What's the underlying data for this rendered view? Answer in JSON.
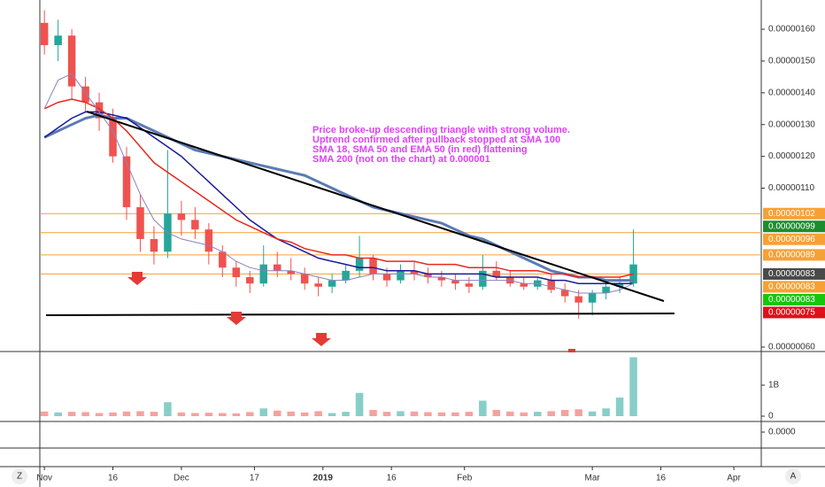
{
  "chart_data": {
    "type": "candlestick",
    "annotation": [
      "Price broke-up descending triangle with strong volume.",
      "Uptrend confirmed after pullback stopped at SMA 100",
      "SMA 18, SMA 50 and EMA 50 (in red) flattening",
      "SMA 200 (not on the chart) at 0.000001"
    ],
    "x": [
      "2018-11-01",
      "2018-11-04",
      "2018-11-07",
      "2018-11-10",
      "2018-11-13",
      "2018-11-16",
      "2018-11-19",
      "2018-11-22",
      "2018-11-25",
      "2018-11-28",
      "2018-12-01",
      "2018-12-04",
      "2018-12-07",
      "2018-12-10",
      "2018-12-13",
      "2018-12-16",
      "2018-12-19",
      "2018-12-22",
      "2018-12-25",
      "2018-12-28",
      "2018-12-31",
      "2019-01-03",
      "2019-01-06",
      "2019-01-09",
      "2019-01-12",
      "2019-01-15",
      "2019-01-18",
      "2019-01-21",
      "2019-01-24",
      "2019-01-27",
      "2019-01-30",
      "2019-02-02",
      "2019-02-05",
      "2019-02-08",
      "2019-02-11",
      "2019-02-14",
      "2019-02-17",
      "2019-02-20",
      "2019-02-23",
      "2019-02-26",
      "2019-03-01",
      "2019-03-04",
      "2019-03-07",
      "2019-03-10"
    ],
    "open": [
      1.62e-06,
      1.55e-06,
      1.58e-06,
      1.42e-06,
      1.37e-06,
      1.32e-06,
      1.2e-06,
      1.04e-06,
      9.4e-07,
      9e-07,
      1.02e-06,
      1e-06,
      9.7e-07,
      9e-07,
      8.5e-07,
      8.2e-07,
      8e-07,
      8.6e-07,
      8.4e-07,
      8.3e-07,
      8e-07,
      7.9e-07,
      8.1e-07,
      8.4e-07,
      8.8e-07,
      8.3e-07,
      8.1e-07,
      8.4e-07,
      8.3e-07,
      8.2e-07,
      8.1e-07,
      8e-07,
      7.9e-07,
      8.4e-07,
      8.2e-07,
      8e-07,
      7.9e-07,
      8.1e-07,
      7.8e-07,
      7.6e-07,
      7.4e-07,
      7.7e-07,
      7.9e-07,
      8e-07
    ],
    "high": [
      1.66e-06,
      1.63e-06,
      1.6e-06,
      1.45e-06,
      1.4e-06,
      1.35e-06,
      1.23e-06,
      1.08e-06,
      9.8e-07,
      1.22e-06,
      1.06e-06,
      1.04e-06,
      9.9e-07,
      9.2e-07,
      8.7e-07,
      8.4e-07,
      9.2e-07,
      9e-07,
      8.8e-07,
      8.5e-07,
      8.2e-07,
      8.3e-07,
      8.6e-07,
      9.5e-07,
      8.9e-07,
      8.5e-07,
      8.6e-07,
      8.7e-07,
      8.5e-07,
      8.4e-07,
      8.3e-07,
      8.2e-07,
      8.9e-07,
      8.7e-07,
      8.4e-07,
      8.2e-07,
      8.2e-07,
      8.3e-07,
      8e-07,
      7.8e-07,
      7.8e-07,
      8.1e-07,
      8.2e-07,
      9.7e-07
    ],
    "low": [
      1.52e-06,
      1.5e-06,
      1.38e-06,
      1.34e-06,
      1.28e-06,
      1.18e-06,
      1e-06,
      9e-07,
      8.6e-07,
      8.8e-07,
      9.5e-07,
      9.4e-07,
      8.6e-07,
      8.2e-07,
      7.9e-07,
      7.7e-07,
      7.9e-07,
      8.2e-07,
      8.1e-07,
      7.8e-07,
      7.6e-07,
      7.7e-07,
      8e-07,
      8.2e-07,
      8.1e-07,
      7.9e-07,
      8e-07,
      8.1e-07,
      8e-07,
      7.9e-07,
      7.8e-07,
      7.7e-07,
      7.8e-07,
      8.1e-07,
      7.9e-07,
      7.8e-07,
      7.8e-07,
      7.7e-07,
      7.4e-07,
      6.9e-07,
      7e-07,
      7.5e-07,
      7.7e-07,
      7.9e-07
    ],
    "close": [
      1.55e-06,
      1.58e-06,
      1.42e-06,
      1.37e-06,
      1.32e-06,
      1.2e-06,
      1.04e-06,
      9.4e-07,
      9e-07,
      1.02e-06,
      1e-06,
      9.7e-07,
      9e-07,
      8.5e-07,
      8.2e-07,
      8e-07,
      8.6e-07,
      8.4e-07,
      8.3e-07,
      8e-07,
      7.9e-07,
      8.1e-07,
      8.4e-07,
      8.8e-07,
      8.3e-07,
      8.1e-07,
      8.4e-07,
      8.3e-07,
      8.2e-07,
      8.1e-07,
      8e-07,
      7.9e-07,
      8.4e-07,
      8.2e-07,
      8e-07,
      7.9e-07,
      8.1e-07,
      7.8e-07,
      7.6e-07,
      7.4e-07,
      7.7e-07,
      7.9e-07,
      8e-07,
      8.6e-07
    ],
    "up_color": "#26a69a",
    "down_color": "#ef5350",
    "series": [
      {
        "color": "#5b7bb4",
        "width": 3,
        "values": [
          1.26e-06,
          1.28e-06,
          1.3e-06,
          1.32e-06,
          1.33e-06,
          1.32e-06,
          1.32e-06,
          1.3e-06,
          1.28e-06,
          1.26e-06,
          1.24e-06,
          1.22e-06,
          1.21e-06,
          1.2e-06,
          1.19e-06,
          1.18e-06,
          1.17e-06,
          1.16e-06,
          1.15e-06,
          1.14e-06,
          1.12e-06,
          1.1e-06,
          1.08e-06,
          1.06e-06,
          1.04e-06,
          1.03e-06,
          1.02e-06,
          1.01e-06,
          1e-06,
          9.9e-07,
          9.7e-07,
          9.5e-07,
          9.4e-07,
          9.2e-07,
          9e-07,
          8.8e-07,
          8.6e-07,
          8.4e-07,
          8.3e-07,
          8.2e-07,
          8.2e-07,
          8.1e-07,
          8.1e-07,
          8.1e-07
        ]
      },
      {
        "color": "#1a1a9e",
        "width": 1.5,
        "values": [
          1.26e-06,
          1.29e-06,
          1.32e-06,
          1.34e-06,
          1.34e-06,
          1.33e-06,
          1.32e-06,
          1.29e-06,
          1.26e-06,
          1.23e-06,
          1.2e-06,
          1.16e-06,
          1.12e-06,
          1.08e-06,
          1.04e-06,
          1e-06,
          9.7e-07,
          9.4e-07,
          9.2e-07,
          9e-07,
          8.8e-07,
          8.7e-07,
          8.6e-07,
          8.5e-07,
          8.5e-07,
          8.4e-07,
          8.4e-07,
          8.4e-07,
          8.3e-07,
          8.3e-07,
          8.3e-07,
          8.3e-07,
          8.3e-07,
          8.2e-07,
          8.2e-07,
          8.2e-07,
          8.2e-07,
          8.1e-07,
          8.1e-07,
          8e-07,
          8e-07,
          8e-07,
          8e-07,
          8e-07
        ]
      },
      {
        "color": "#e8281e",
        "width": 1.5,
        "values": [
          1.35e-06,
          1.37e-06,
          1.38e-06,
          1.37e-06,
          1.35e-06,
          1.32e-06,
          1.28e-06,
          1.23e-06,
          1.18e-06,
          1.15e-06,
          1.12e-06,
          1.09e-06,
          1.06e-06,
          1.03e-06,
          1e-06,
          9.8e-07,
          9.6e-07,
          9.4e-07,
          9.3e-07,
          9.1e-07,
          9e-07,
          8.9e-07,
          8.9e-07,
          8.8e-07,
          8.8e-07,
          8.7e-07,
          8.7e-07,
          8.7e-07,
          8.6e-07,
          8.6e-07,
          8.6e-07,
          8.5e-07,
          8.5e-07,
          8.5e-07,
          8.4e-07,
          8.4e-07,
          8.4e-07,
          8.3e-07,
          8.3e-07,
          8.2e-07,
          8.2e-07,
          8.2e-07,
          8.2e-07,
          8.3e-07
        ]
      },
      {
        "color": "#8c7fc0",
        "width": 1,
        "values": [
          1.35e-06,
          1.44e-06,
          1.46e-06,
          1.4e-06,
          1.34e-06,
          1.28e-06,
          1.18e-06,
          1.08e-06,
          1e-06,
          9.6e-07,
          9.4e-07,
          9.3e-07,
          9.2e-07,
          9e-07,
          8.7e-07,
          8.5e-07,
          8.4e-07,
          8.4e-07,
          8.4e-07,
          8.3e-07,
          8.2e-07,
          8.1e-07,
          8.1e-07,
          8.2e-07,
          8.3e-07,
          8.3e-07,
          8.3e-07,
          8.3e-07,
          8.2e-07,
          8.2e-07,
          8.1e-07,
          8.1e-07,
          8.1e-07,
          8.1e-07,
          8.1e-07,
          8e-07,
          8e-07,
          7.9e-07,
          7.8e-07,
          7.7e-07,
          7.7e-07,
          7.7e-07,
          7.8e-07,
          8e-07
        ]
      }
    ],
    "volume": [
      150000000.0,
      120000000.0,
      140000000.0,
      130000000.0,
      100000000.0,
      120000000.0,
      150000000.0,
      160000000.0,
      140000000.0,
      450000000.0,
      120000000.0,
      100000000.0,
      110000000.0,
      100000000.0,
      90000000.0,
      130000000.0,
      250000000.0,
      180000000.0,
      150000000.0,
      120000000.0,
      160000000.0,
      100000000.0,
      140000000.0,
      750000000.0,
      200000000.0,
      140000000.0,
      160000000.0,
      150000000.0,
      130000000.0,
      120000000.0,
      120000000.0,
      140000000.0,
      500000000.0,
      200000000.0,
      150000000.0,
      120000000.0,
      140000000.0,
      160000000.0,
      200000000.0,
      220000000.0,
      150000000.0,
      250000000.0,
      600000000.0,
      1900000000.0
    ],
    "xlim": [
      "2018-10-31",
      "2019-04-07"
    ],
    "xticks": [
      {
        "value": "2018-11-01",
        "label": "Nov"
      },
      {
        "value": "2018-11-16",
        "label": "16"
      },
      {
        "value": "2018-12-01",
        "label": "Dec"
      },
      {
        "value": "2018-12-17",
        "label": "17"
      },
      {
        "value": "2019-01-01",
        "label": "2019"
      },
      {
        "value": "2019-01-16",
        "label": "16"
      },
      {
        "value": "2019-02-01",
        "label": "Feb"
      },
      {
        "value": "2019-03-01",
        "label": "Mar"
      },
      {
        "value": "2019-03-16",
        "label": "16"
      },
      {
        "value": "2019-04-01",
        "label": "Apr"
      }
    ],
    "ylim": [
      5.86e-07,
      1.692e-06
    ],
    "yticks": [
      {
        "value": 1.6e-06,
        "label": "0.00000160"
      },
      {
        "value": 1.5e-06,
        "label": "0.00000150"
      },
      {
        "value": 1.4e-06,
        "label": "0.00000140"
      },
      {
        "value": 1.3e-06,
        "label": "0.00000130"
      },
      {
        "value": 1.2e-06,
        "label": "0.00000120"
      },
      {
        "value": 1.1e-06,
        "label": "0.00000110"
      },
      {
        "value": 6e-07,
        "label": "0.00000060"
      }
    ],
    "price_levels": [
      {
        "value": 1.02e-06,
        "label": "0.00000102",
        "color": "#f7a035",
        "line": true
      },
      {
        "value": 9.9e-07,
        "label": "0.00000099",
        "color": "#1e8c2e",
        "line": false
      },
      {
        "value": 9.6e-07,
        "label": "0.00000096",
        "color": "#f7a035",
        "line": true
      },
      {
        "value": 8.9e-07,
        "label": "0.00000089",
        "color": "#f7a035",
        "line": true
      },
      {
        "value": 8.3e-07,
        "label": "0.00000083",
        "color": "#4a4a4a",
        "line": false
      },
      {
        "value": 8.3e-07,
        "label": "0.00000083",
        "color": "#f7a035",
        "line": true
      },
      {
        "value": 8.3e-07,
        "label": "0.00000083",
        "color": "#16c60c",
        "line": false
      },
      {
        "value": 7.5e-07,
        "label": "0.00000075",
        "color": "#e0101a",
        "line": false
      }
    ],
    "volume_ylim": [
      0,
      2000000000.0
    ],
    "volume_yticks": [
      {
        "value": 1000000000.0,
        "label": "1B"
      },
      0
    ],
    "lower_yticks": [
      {
        "value": 0,
        "label": "0.0000"
      }
    ],
    "corner_buttons": [
      "Z",
      "A"
    ]
  }
}
